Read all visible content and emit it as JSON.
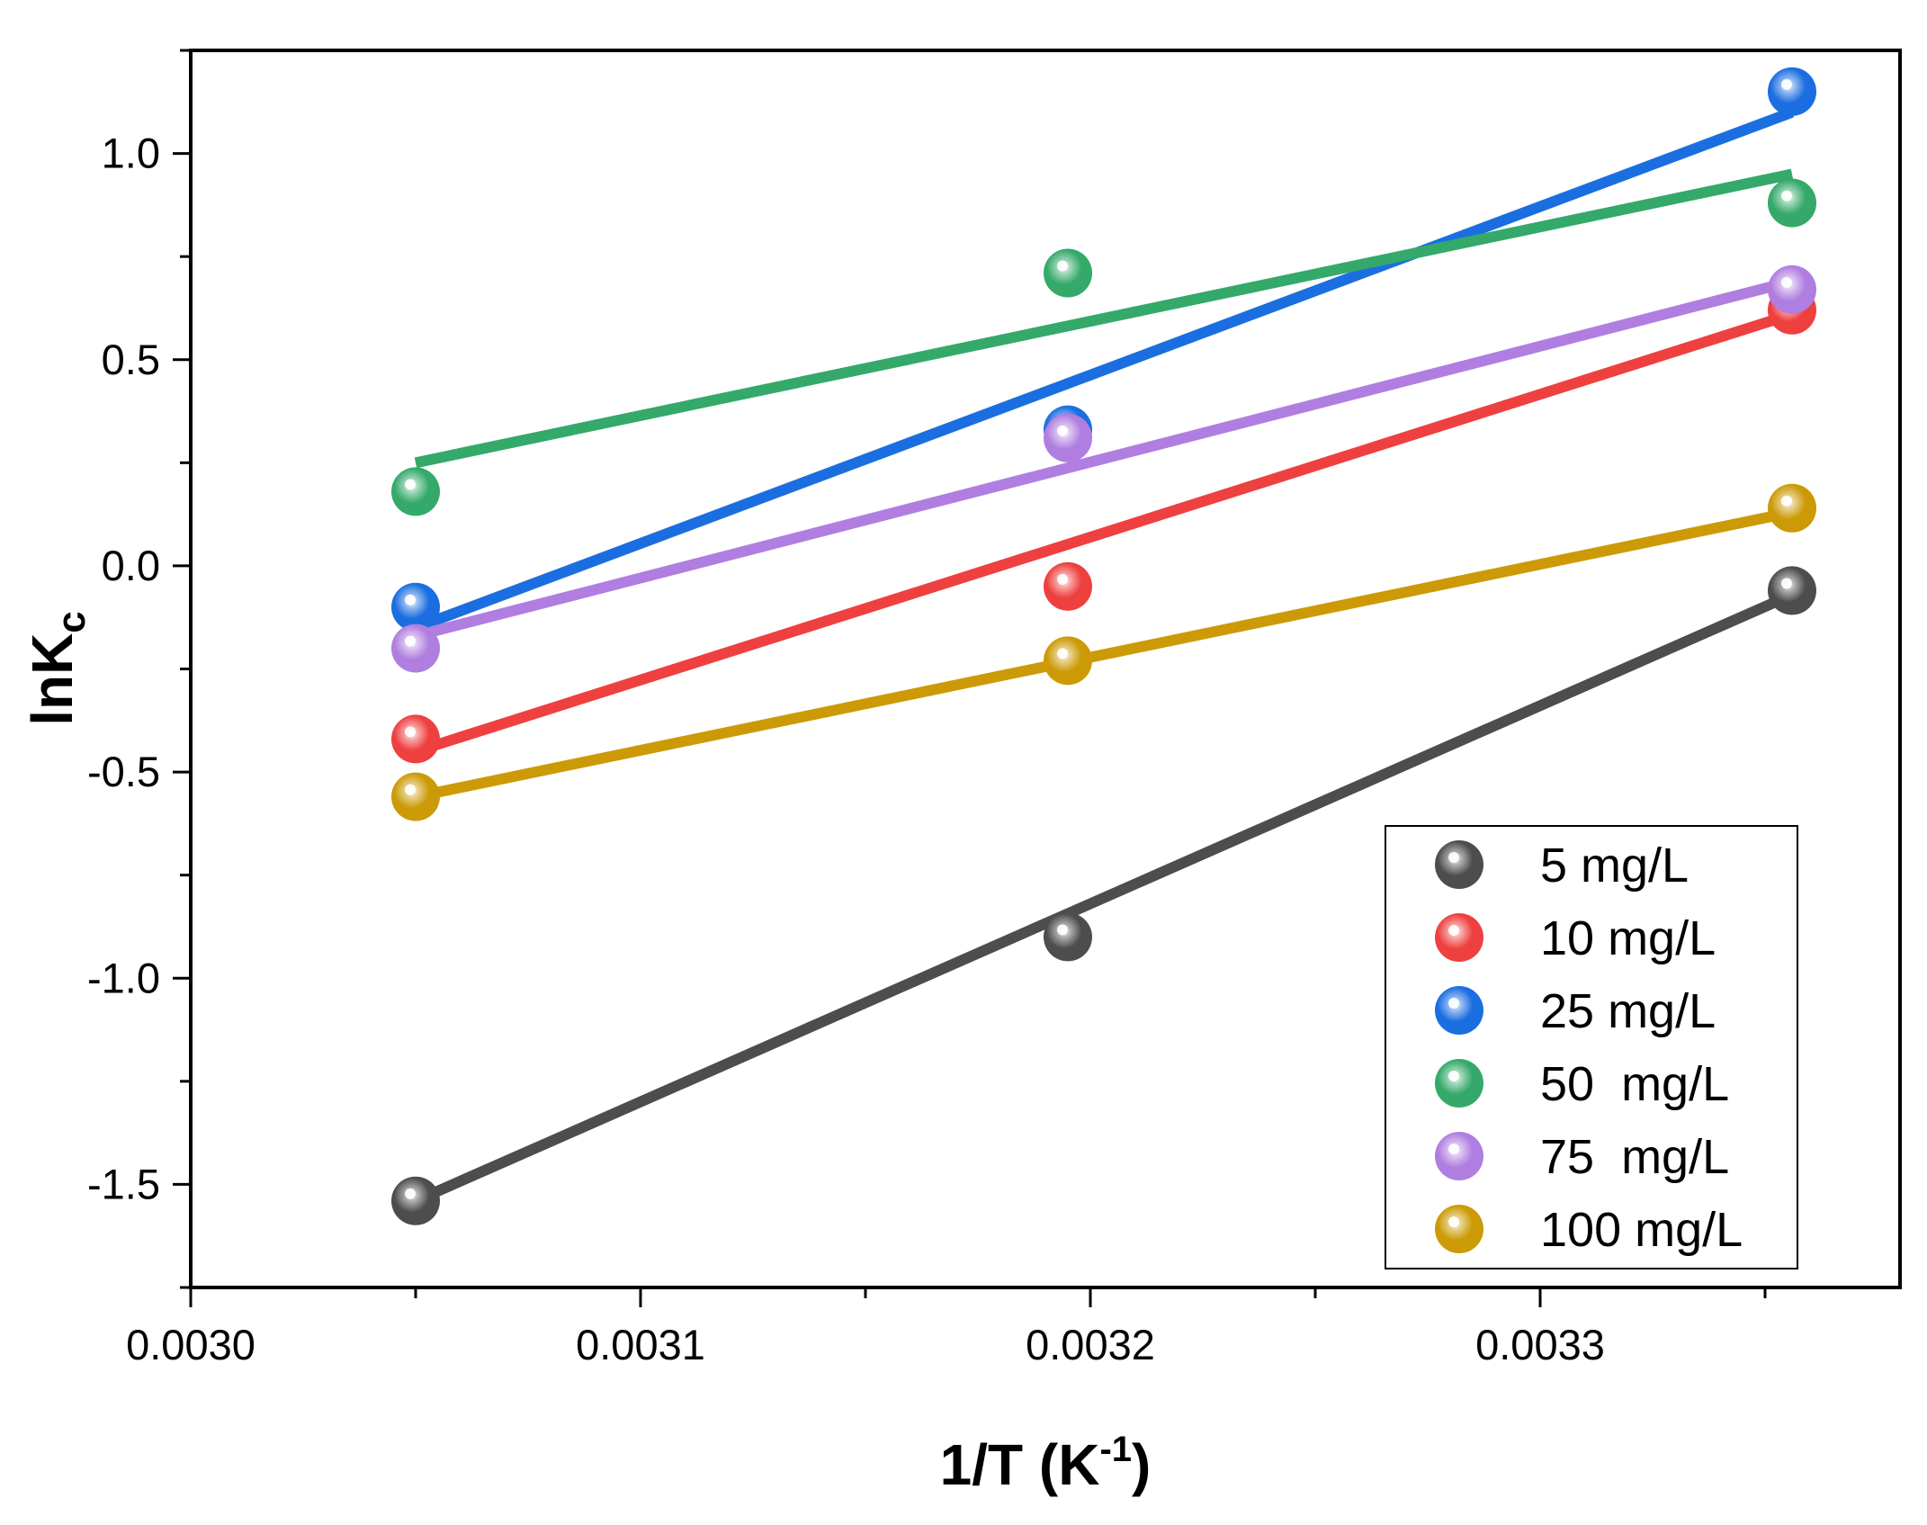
{
  "chart_data": {
    "type": "scatter",
    "xlabel": {
      "base": "1/T (K",
      "sup": "-1",
      "tail": ")"
    },
    "ylabel": {
      "base": "lnK",
      "sub": "c"
    },
    "xlim": [
      0.003,
      0.00338
    ],
    "ylim": [
      -1.75,
      1.25
    ],
    "x_ticks": [
      "0.0030",
      "0.0031",
      "0.0032",
      "0.0033"
    ],
    "x_tick_values": [
      0.003,
      0.0031,
      0.0032,
      0.0033
    ],
    "y_ticks": [
      "-1.5",
      "-1.0",
      "-0.5",
      "0.0",
      "0.5",
      "1.0"
    ],
    "y_tick_values": [
      -1.5,
      -1.0,
      -0.5,
      0.0,
      0.5,
      1.0
    ],
    "x": [
      0.00305,
      0.003195,
      0.003356
    ],
    "legend_position": "bottom-right",
    "grid": false,
    "series": [
      {
        "name": "5 mg/L",
        "color": "#4d4d4d",
        "y": [
          -1.54,
          -0.9,
          -0.06
        ],
        "fit": [
          -1.54,
          -0.86,
          -0.07
        ]
      },
      {
        "name": "10 mg/L",
        "color": "#ef4040",
        "y": [
          -0.42,
          -0.05,
          0.62
        ],
        "fit": [
          -0.45,
          0.04,
          0.61
        ]
      },
      {
        "name": "25 mg/L",
        "color": "#1b6ee0",
        "y": [
          -0.1,
          0.33,
          1.15
        ],
        "fit": [
          -0.15,
          0.44,
          1.1
        ]
      },
      {
        "name": "50  mg/L",
        "color": "#34a96a",
        "y": [
          0.18,
          0.71,
          0.88
        ],
        "fit": [
          0.25,
          0.59,
          0.95
        ]
      },
      {
        "name": "75  mg/L",
        "color": "#b07ee0",
        "y": [
          -0.2,
          0.31,
          0.67
        ],
        "fit": [
          -0.17,
          0.24,
          0.69
        ]
      },
      {
        "name": "100 mg/L",
        "color": "#cc9a06",
        "y": [
          -0.56,
          -0.23,
          0.14
        ],
        "fit": [
          -0.56,
          -0.23,
          0.13
        ]
      }
    ]
  }
}
